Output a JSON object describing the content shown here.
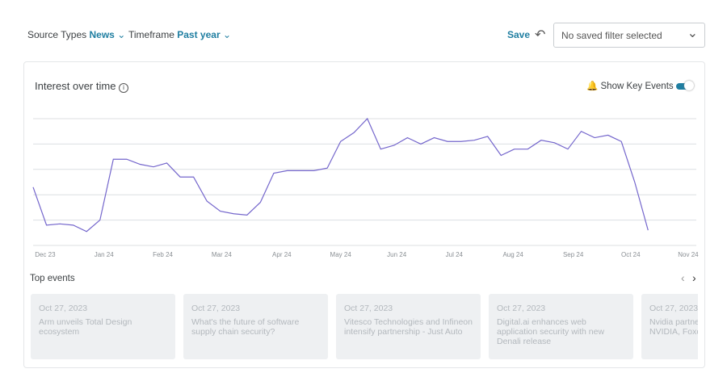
{
  "filters": {
    "source_label": "Source Types",
    "source_value": "News",
    "timeframe_label": "Timeframe",
    "timeframe_value": "Past year",
    "save": "Save",
    "saved_filter": "No saved filter selected"
  },
  "panel": {
    "title": "Interest over time",
    "key_events": "Show Key Events",
    "top_events": "Top events"
  },
  "chart_data": {
    "type": "line",
    "color": "#7466cc",
    "grid": true,
    "x": [
      0,
      1,
      2,
      3,
      4,
      5,
      6,
      7,
      8,
      9,
      10,
      11,
      12,
      13,
      14,
      15,
      16,
      17,
      18,
      19,
      20,
      21,
      22,
      23,
      24,
      25,
      26,
      27,
      28,
      29,
      30,
      31,
      32,
      33,
      34,
      35,
      36,
      37,
      38,
      39,
      40,
      41,
      42,
      43,
      44,
      45,
      46
    ],
    "values": [
      46,
      16,
      17,
      16,
      11,
      20,
      68,
      68,
      64,
      62,
      65,
      54,
      54,
      35,
      27,
      25,
      24,
      34,
      57,
      59,
      59,
      59,
      61,
      82,
      89,
      100,
      76,
      79,
      85,
      80,
      85,
      82,
      82,
      83,
      86,
      71,
      76,
      76,
      83,
      81,
      76,
      90,
      85,
      87,
      82,
      50,
      12
    ],
    "xlim": [
      0,
      49.2
    ],
    "ylim": [
      0,
      100
    ],
    "yticks": [
      20,
      40,
      60,
      80,
      100
    ],
    "xticks": [
      {
        "value": 0.9,
        "label": "Dec 23"
      },
      {
        "value": 5.3,
        "label": "Jan 24"
      },
      {
        "value": 9.7,
        "label": "Feb 24"
      },
      {
        "value": 14.1,
        "label": "Mar 24"
      },
      {
        "value": 18.6,
        "label": "Apr 24"
      },
      {
        "value": 23.0,
        "label": "May 24"
      },
      {
        "value": 27.2,
        "label": "Jun 24"
      },
      {
        "value": 31.5,
        "label": "Jul 24"
      },
      {
        "value": 35.9,
        "label": "Aug 24"
      },
      {
        "value": 40.4,
        "label": "Sep 24"
      },
      {
        "value": 44.7,
        "label": "Oct 24"
      },
      {
        "value": 49.0,
        "label": "Nov 24"
      }
    ]
  },
  "events": [
    {
      "date": "Oct 27, 2023",
      "title": "Arm unveils Total Design ecosystem"
    },
    {
      "date": "Oct 27, 2023",
      "title": "What's the future of software supply chain security?"
    },
    {
      "date": "Oct 27, 2023",
      "title": "Vitesco Technologies and Infineon intensify partnership - Just Auto"
    },
    {
      "date": "Oct 27, 2023",
      "title": "Digital.ai enhances web application security with new Denali release"
    },
    {
      "date": "Oct 27, 2023",
      "title": "Nvidia partners to build factories NVIDIA, Foxconn"
    }
  ]
}
